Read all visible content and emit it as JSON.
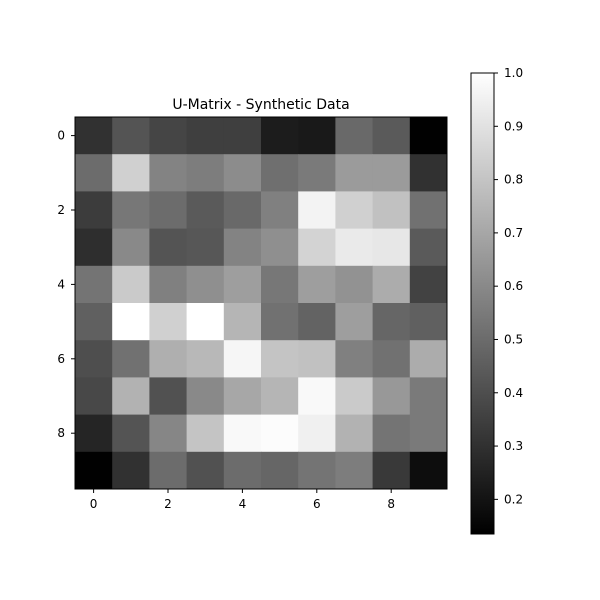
{
  "chart_data": {
    "type": "heatmap",
    "title": "U-Matrix - Synthetic Data",
    "xlabel": "",
    "ylabel": "",
    "colormap": "gray",
    "origin": "top-left",
    "x_ticks": [
      0,
      2,
      4,
      6,
      8
    ],
    "y_ticks": [
      0,
      2,
      4,
      6,
      8
    ],
    "colorbar": {
      "vmin": 0.135,
      "vmax": 1.0,
      "ticks": [
        "0.2",
        "0.3",
        "0.4",
        "0.5",
        "0.6",
        "0.7",
        "0.8",
        "0.9",
        "1.0"
      ],
      "tick_values": [
        0.2,
        0.3,
        0.4,
        0.5,
        0.6,
        0.7,
        0.8,
        0.9,
        1.0
      ],
      "placement": "right"
    },
    "values": [
      [
        0.3,
        0.42,
        0.37,
        0.35,
        0.35,
        0.23,
        0.22,
        0.49,
        0.44,
        0.14
      ],
      [
        0.5,
        0.84,
        0.58,
        0.56,
        0.61,
        0.51,
        0.55,
        0.66,
        0.66,
        0.3
      ],
      [
        0.34,
        0.54,
        0.5,
        0.44,
        0.49,
        0.57,
        0.96,
        0.84,
        0.79,
        0.52
      ],
      [
        0.29,
        0.6,
        0.42,
        0.43,
        0.58,
        0.62,
        0.85,
        0.93,
        0.92,
        0.44
      ],
      [
        0.53,
        0.82,
        0.57,
        0.62,
        0.67,
        0.54,
        0.67,
        0.63,
        0.72,
        0.36
      ],
      [
        0.46,
        1.0,
        0.84,
        1.0,
        0.75,
        0.52,
        0.47,
        0.67,
        0.48,
        0.46
      ],
      [
        0.4,
        0.52,
        0.73,
        0.76,
        0.97,
        0.8,
        0.79,
        0.57,
        0.52,
        0.72
      ],
      [
        0.38,
        0.74,
        0.41,
        0.6,
        0.7,
        0.75,
        0.98,
        0.82,
        0.65,
        0.55
      ],
      [
        0.26,
        0.42,
        0.59,
        0.8,
        0.98,
        0.99,
        0.95,
        0.74,
        0.53,
        0.55
      ],
      [
        0.14,
        0.3,
        0.5,
        0.41,
        0.5,
        0.48,
        0.53,
        0.56,
        0.33,
        0.18
      ]
    ]
  }
}
